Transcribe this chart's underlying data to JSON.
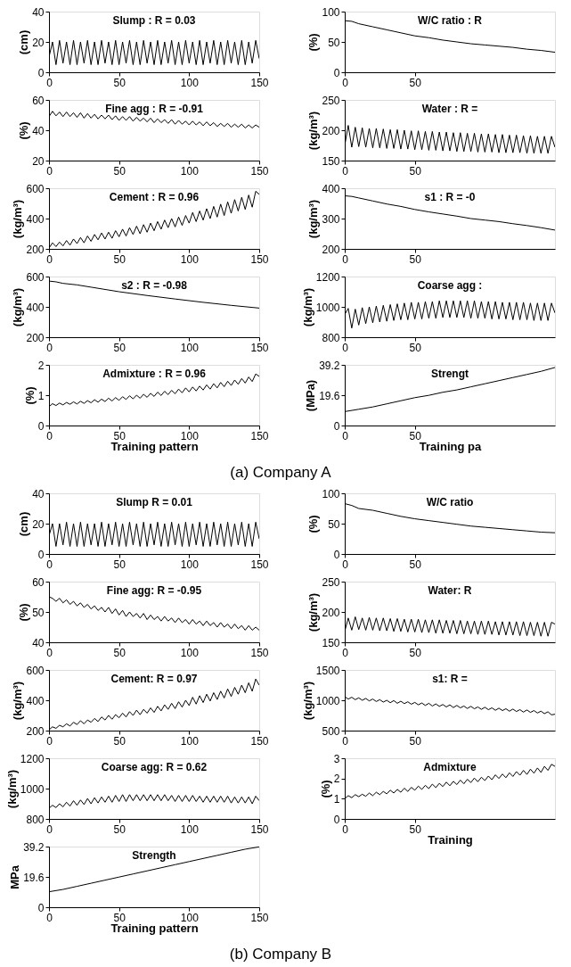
{
  "chart_data": [
    {
      "type": "line",
      "title": "Slump : R = 0.03",
      "ylabel": "(cm)",
      "color": "#000000",
      "xlim": [
        0,
        150
      ],
      "xticks": [
        0,
        50,
        100,
        150
      ],
      "ylim": [
        0,
        40
      ],
      "yticks": [
        0,
        20,
        40
      ],
      "x": [
        0,
        2.5,
        5,
        7.5,
        10,
        12.5,
        15,
        17.5,
        20,
        22.5,
        25,
        27.5,
        30,
        32.5,
        35,
        37.5,
        40,
        42.5,
        45,
        47.5,
        50,
        52.5,
        55,
        57.5,
        60,
        62.5,
        65,
        67.5,
        70,
        72.5,
        75,
        77.5,
        80,
        82.5,
        85,
        87.5,
        90,
        92.5,
        95,
        97.5,
        100,
        102.5,
        105,
        107.5,
        110,
        112.5,
        115,
        117.5,
        120,
        122.5,
        125,
        127.5,
        130,
        132.5,
        135,
        137.5,
        140,
        142.5,
        145,
        147.5,
        150
      ],
      "values": [
        10,
        20,
        5,
        21,
        6,
        20,
        5,
        21,
        5,
        20,
        6,
        21,
        5,
        20,
        5,
        21,
        6,
        20,
        5,
        21,
        5,
        20,
        6,
        21,
        5,
        20,
        5,
        21,
        6,
        20,
        5,
        21,
        5,
        20,
        6,
        21,
        5,
        20,
        5,
        21,
        6,
        20,
        5,
        21,
        5,
        20,
        6,
        21,
        5,
        20,
        5,
        21,
        6,
        20,
        5,
        21,
        5,
        20,
        6,
        21,
        9
      ]
    },
    {
      "type": "line",
      "title": "Fine agg : R = -0.91",
      "ylabel": "(%)",
      "color": "#000000",
      "xlim": [
        0,
        150
      ],
      "xticks": [
        0,
        50,
        100,
        150
      ],
      "ylim": [
        20,
        60
      ],
      "yticks": [
        20,
        40,
        60
      ],
      "x": [
        0,
        2.5,
        5,
        7.5,
        10,
        12.5,
        15,
        17.5,
        20,
        22.5,
        25,
        27.5,
        30,
        32.5,
        35,
        37.5,
        40,
        42.5,
        45,
        47.5,
        50,
        52.5,
        55,
        57.5,
        60,
        62.5,
        65,
        67.5,
        70,
        72.5,
        75,
        77.5,
        80,
        82.5,
        85,
        87.5,
        90,
        92.5,
        95,
        97.5,
        100,
        102.5,
        105,
        107.5,
        110,
        112.5,
        115,
        117.5,
        120,
        122.5,
        125,
        127.5,
        130,
        132.5,
        135,
        137.5,
        140,
        142.5,
        145,
        147.5,
        150
      ],
      "values": [
        49,
        52.5,
        49.5,
        52,
        49,
        52,
        49,
        51.5,
        48.5,
        51.5,
        48,
        51,
        48,
        50.5,
        47.5,
        50,
        47.5,
        50,
        47,
        49.5,
        46.5,
        49,
        46.5,
        49,
        46,
        48.5,
        46,
        48,
        45.5,
        48,
        45,
        47.5,
        45,
        47,
        44.5,
        47,
        44,
        46.5,
        44,
        46,
        43.5,
        46,
        43.5,
        45.5,
        43,
        45.5,
        43,
        45,
        42.5,
        44.5,
        42.5,
        44.5,
        42,
        44,
        42,
        44,
        41.5,
        43.5,
        41.5,
        43.5,
        42
      ]
    },
    {
      "type": "line",
      "title": "Cement : R = 0.96",
      "ylabel": "(kg/m³)",
      "color": "#000000",
      "xlim": [
        0,
        150
      ],
      "xticks": [
        0,
        50,
        100,
        150
      ],
      "ylim": [
        200,
        600
      ],
      "yticks": [
        200,
        400,
        600
      ],
      "x": [
        0,
        2.5,
        5,
        7.5,
        10,
        12.5,
        15,
        17.5,
        20,
        22.5,
        25,
        27.5,
        30,
        32.5,
        35,
        37.5,
        40,
        42.5,
        45,
        47.5,
        50,
        52.5,
        55,
        57.5,
        60,
        62.5,
        65,
        67.5,
        70,
        72.5,
        75,
        77.5,
        80,
        82.5,
        85,
        87.5,
        90,
        92.5,
        95,
        97.5,
        100,
        102.5,
        105,
        107.5,
        110,
        112.5,
        115,
        117.5,
        120,
        122.5,
        125,
        127.5,
        130,
        132.5,
        135,
        137.5,
        140,
        142.5,
        145,
        147.5,
        150
      ],
      "values": [
        205,
        240,
        215,
        245,
        220,
        255,
        225,
        265,
        235,
        275,
        240,
        285,
        250,
        295,
        260,
        305,
        265,
        310,
        270,
        320,
        280,
        330,
        285,
        340,
        295,
        350,
        300,
        360,
        310,
        370,
        320,
        380,
        330,
        390,
        340,
        400,
        345,
        410,
        355,
        420,
        370,
        440,
        380,
        450,
        390,
        465,
        400,
        480,
        410,
        495,
        420,
        510,
        435,
        525,
        450,
        540,
        460,
        555,
        475,
        580,
        560
      ]
    },
    {
      "type": "line",
      "title": "s2 : R = -0.98",
      "ylabel": "(kg/m³)",
      "color": "#000000",
      "xlim": [
        0,
        150
      ],
      "xticks": [
        0,
        50,
        100,
        150
      ],
      "ylim": [
        200,
        600
      ],
      "yticks": [
        200,
        400,
        600
      ],
      "x": [
        0,
        5,
        10,
        20,
        30,
        50,
        70,
        90,
        110,
        130,
        150
      ],
      "values": [
        570,
        565,
        555,
        545,
        530,
        500,
        475,
        452,
        430,
        410,
        392
      ]
    },
    {
      "type": "line",
      "title": "Admixture : R = 0.96",
      "ylabel": "(%)",
      "xlabel": "Training pattern",
      "color": "#000000",
      "xlim": [
        0,
        150
      ],
      "xticks": [
        0,
        50,
        100,
        150
      ],
      "ylim": [
        0,
        2
      ],
      "yticks": [
        0,
        1,
        2
      ],
      "x": [
        0,
        2.5,
        5,
        7.5,
        10,
        12.5,
        15,
        17.5,
        20,
        22.5,
        25,
        27.5,
        30,
        32.5,
        35,
        37.5,
        40,
        42.5,
        45,
        47.5,
        50,
        52.5,
        55,
        57.5,
        60,
        62.5,
        65,
        67.5,
        70,
        72.5,
        75,
        77.5,
        80,
        82.5,
        85,
        87.5,
        90,
        92.5,
        95,
        97.5,
        100,
        102.5,
        105,
        107.5,
        110,
        112.5,
        115,
        117.5,
        120,
        122.5,
        125,
        127.5,
        130,
        132.5,
        135,
        137.5,
        140,
        142.5,
        145,
        147.5,
        150
      ],
      "values": [
        0.62,
        0.72,
        0.66,
        0.74,
        0.68,
        0.76,
        0.7,
        0.78,
        0.71,
        0.8,
        0.73,
        0.82,
        0.75,
        0.85,
        0.77,
        0.87,
        0.79,
        0.9,
        0.81,
        0.92,
        0.83,
        0.95,
        0.86,
        0.98,
        0.88,
        1.0,
        0.9,
        1.03,
        0.93,
        1.06,
        0.96,
        1.1,
        0.99,
        1.13,
        1.02,
        1.16,
        1.05,
        1.2,
        1.08,
        1.24,
        1.11,
        1.27,
        1.14,
        1.3,
        1.17,
        1.34,
        1.2,
        1.38,
        1.24,
        1.42,
        1.28,
        1.46,
        1.32,
        1.5,
        1.36,
        1.55,
        1.4,
        1.6,
        1.45,
        1.7,
        1.62
      ]
    },
    {
      "type": "line",
      "title": "W/C ratio : R",
      "ylabel": "(%)",
      "color": "#000000",
      "xlim": [
        0,
        150
      ],
      "xticks": [
        0,
        50
      ],
      "ylim": [
        0,
        100
      ],
      "yticks": [
        0,
        50,
        100
      ],
      "x": [
        0,
        5,
        10,
        20,
        30,
        40,
        50,
        60,
        70,
        80,
        90,
        100,
        110,
        120,
        130,
        140,
        150
      ],
      "values": [
        85,
        84,
        80,
        75,
        70,
        65,
        60,
        57,
        53,
        50,
        47,
        45,
        43,
        41,
        38,
        36,
        33
      ]
    },
    {
      "type": "line",
      "title": "Water : R =",
      "ylabel": "(kg/m³)",
      "color": "#000000",
      "xlim": [
        0,
        150
      ],
      "xticks": [
        0,
        50
      ],
      "ylim": [
        150,
        250
      ],
      "yticks": [
        150,
        200,
        250
      ],
      "x": [
        0,
        2.5,
        5,
        7.5,
        10,
        12.5,
        15,
        17.5,
        20,
        22.5,
        25,
        27.5,
        30,
        32.5,
        35,
        37.5,
        40,
        42.5,
        45,
        47.5,
        50,
        52.5,
        55,
        57.5,
        60,
        62.5,
        65,
        67.5,
        70,
        72.5,
        75,
        77.5,
        80,
        82.5,
        85,
        87.5,
        90,
        92.5,
        95,
        97.5,
        100,
        102.5,
        105,
        107.5,
        110,
        112.5,
        115,
        117.5,
        120,
        122.5,
        125,
        127.5,
        130,
        132.5,
        135,
        137.5,
        140,
        142.5,
        145,
        147.5,
        150
      ],
      "values": [
        175,
        208,
        172,
        205,
        173,
        204,
        172,
        203,
        171,
        203,
        171,
        202,
        170,
        201,
        170,
        201,
        169,
        200,
        169,
        199,
        168,
        199,
        168,
        198,
        167,
        198,
        167,
        197,
        166,
        197,
        166,
        196,
        165,
        196,
        165,
        195,
        165,
        195,
        164,
        194,
        164,
        194,
        164,
        193,
        163,
        193,
        163,
        192,
        163,
        192,
        163,
        191,
        162,
        191,
        162,
        190,
        162,
        190,
        162,
        190,
        172
      ]
    },
    {
      "type": "line",
      "title": "s1 : R = -0",
      "ylabel": "(kg/m³)",
      "color": "#000000",
      "xlim": [
        0,
        150
      ],
      "xticks": [
        0,
        50
      ],
      "ylim": [
        200,
        400
      ],
      "yticks": [
        200,
        300,
        400
      ],
      "x": [
        0,
        5,
        10,
        20,
        30,
        40,
        50,
        60,
        70,
        80,
        90,
        100,
        110,
        120,
        130,
        140,
        150
      ],
      "values": [
        375,
        373,
        368,
        358,
        348,
        340,
        330,
        322,
        315,
        308,
        300,
        295,
        290,
        283,
        277,
        270,
        262
      ]
    },
    {
      "type": "line",
      "title": "Coarse agg :",
      "ylabel": "(kg/m³)",
      "color": "#000000",
      "xlim": [
        0,
        150
      ],
      "xticks": [
        0,
        50
      ],
      "ylim": [
        800,
        1200
      ],
      "yticks": [
        800,
        1000,
        1200
      ],
      "x": [
        0,
        2.5,
        5,
        7.5,
        10,
        12.5,
        15,
        17.5,
        20,
        22.5,
        25,
        27.5,
        30,
        32.5,
        35,
        37.5,
        40,
        42.5,
        45,
        47.5,
        50,
        52.5,
        55,
        57.5,
        60,
        62.5,
        65,
        67.5,
        70,
        72.5,
        75,
        77.5,
        80,
        82.5,
        85,
        87.5,
        90,
        92.5,
        95,
        97.5,
        100,
        102.5,
        105,
        107.5,
        110,
        112.5,
        115,
        117.5,
        120,
        122.5,
        125,
        127.5,
        130,
        132.5,
        135,
        137.5,
        140,
        142.5,
        145,
        147.5,
        150
      ],
      "values": [
        950,
        990,
        860,
        985,
        880,
        995,
        890,
        1000,
        895,
        1005,
        900,
        1010,
        905,
        1015,
        910,
        1020,
        915,
        1025,
        915,
        1030,
        920,
        1030,
        920,
        1035,
        925,
        1035,
        925,
        1040,
        930,
        1040,
        930,
        1040,
        930,
        1040,
        930,
        1040,
        925,
        1040,
        925,
        1035,
        925,
        1035,
        920,
        1035,
        920,
        1030,
        920,
        1030,
        915,
        1030,
        915,
        1030,
        915,
        1025,
        910,
        1025,
        910,
        1025,
        910,
        1025,
        960
      ]
    },
    {
      "type": "line",
      "title": "Strengt",
      "ylabel": "(MPa)",
      "xlabel": "Training pa",
      "color": "#000000",
      "xlim": [
        0,
        150
      ],
      "xticks": [
        0,
        50
      ],
      "ylim": [
        0,
        39.2
      ],
      "yticks": [
        0,
        19.6,
        39.2
      ],
      "x": [
        0,
        10,
        20,
        30,
        40,
        50,
        60,
        70,
        80,
        90,
        100,
        110,
        120,
        130,
        140,
        150
      ],
      "values": [
        9,
        10.5,
        12,
        14,
        16,
        18,
        19.5,
        21.5,
        23,
        25,
        27,
        29,
        31,
        33,
        35,
        37.5
      ]
    },
    {
      "type": "other",
      "annotations": [
        "(a) Company A"
      ]
    },
    {
      "type": "line",
      "title": "Slump R = 0.01",
      "ylabel": "(cm)",
      "color": "#000000",
      "xlim": [
        0,
        150
      ],
      "xticks": [
        0,
        50,
        100,
        150
      ],
      "ylim": [
        0,
        40
      ],
      "yticks": [
        0,
        20,
        40
      ],
      "x": [
        0,
        2.5,
        5,
        7.5,
        10,
        12.5,
        15,
        17.5,
        20,
        22.5,
        25,
        27.5,
        30,
        32.5,
        35,
        37.5,
        40,
        42.5,
        45,
        47.5,
        50,
        52.5,
        55,
        57.5,
        60,
        62.5,
        65,
        67.5,
        70,
        72.5,
        75,
        77.5,
        80,
        82.5,
        85,
        87.5,
        90,
        92.5,
        95,
        97.5,
        100,
        102.5,
        105,
        107.5,
        110,
        112.5,
        115,
        117.5,
        120,
        122.5,
        125,
        127.5,
        130,
        132.5,
        135,
        137.5,
        140,
        142.5,
        145,
        147.5,
        150
      ],
      "values": [
        12,
        20,
        5,
        20,
        6,
        21,
        5,
        20,
        5,
        21,
        5,
        20,
        6,
        20,
        5,
        21,
        5,
        20,
        6,
        21,
        5,
        20,
        5,
        21,
        6,
        20,
        5,
        21,
        5,
        20,
        6,
        21,
        5,
        20,
        5,
        21,
        6,
        20,
        5,
        21,
        5,
        20,
        6,
        21,
        5,
        20,
        5,
        21,
        6,
        20,
        5,
        21,
        5,
        20,
        6,
        21,
        5,
        20,
        5,
        21,
        10
      ]
    },
    {
      "type": "line",
      "title": "Fine agg: R = -0.95",
      "ylabel": "(%)",
      "color": "#000000",
      "xlim": [
        0,
        150
      ],
      "xticks": [
        0,
        50,
        100,
        150
      ],
      "ylim": [
        40,
        60
      ],
      "yticks": [
        40,
        50,
        60
      ],
      "x": [
        0,
        2.5,
        5,
        7.5,
        10,
        12.5,
        15,
        17.5,
        20,
        22.5,
        25,
        27.5,
        30,
        32.5,
        35,
        37.5,
        40,
        42.5,
        45,
        47.5,
        50,
        52.5,
        55,
        57.5,
        60,
        62.5,
        65,
        67.5,
        70,
        72.5,
        75,
        77.5,
        80,
        82.5,
        85,
        87.5,
        90,
        92.5,
        95,
        97.5,
        100,
        102.5,
        105,
        107.5,
        110,
        112.5,
        115,
        117.5,
        120,
        122.5,
        125,
        127.5,
        130,
        132.5,
        135,
        137.5,
        140,
        142.5,
        145,
        147.5,
        150
      ],
      "values": [
        55,
        54.5,
        53.5,
        54.5,
        53,
        54,
        52.5,
        53.5,
        52,
        53,
        51.5,
        52.5,
        51,
        52,
        50.5,
        51.5,
        50,
        51.5,
        49.5,
        51,
        49,
        50.5,
        48.5,
        50,
        48.5,
        49.5,
        48,
        49.5,
        47.5,
        49,
        47.5,
        48.5,
        47,
        48.5,
        47,
        48,
        46.5,
        48,
        46.5,
        47.5,
        46,
        47.5,
        46,
        47,
        45.5,
        47,
        45.5,
        46.5,
        45,
        46.5,
        45,
        46,
        44.5,
        46,
        44.5,
        45.5,
        44,
        45.5,
        44,
        45,
        44
      ]
    },
    {
      "type": "line",
      "title": "Cement: R = 0.97",
      "ylabel": "(kg/m³)",
      "color": "#000000",
      "xlim": [
        0,
        150
      ],
      "xticks": [
        0,
        50,
        100,
        150
      ],
      "ylim": [
        200,
        600
      ],
      "yticks": [
        200,
        400,
        600
      ],
      "x": [
        0,
        2.5,
        5,
        7.5,
        10,
        12.5,
        15,
        17.5,
        20,
        22.5,
        25,
        27.5,
        30,
        32.5,
        35,
        37.5,
        40,
        42.5,
        45,
        47.5,
        50,
        52.5,
        55,
        57.5,
        60,
        62.5,
        65,
        67.5,
        70,
        72.5,
        75,
        77.5,
        80,
        82.5,
        85,
        87.5,
        90,
        92.5,
        95,
        97.5,
        100,
        102.5,
        105,
        107.5,
        110,
        112.5,
        115,
        117.5,
        120,
        122.5,
        125,
        127.5,
        130,
        132.5,
        135,
        137.5,
        140,
        142.5,
        145,
        147.5,
        150
      ],
      "values": [
        205,
        225,
        215,
        235,
        225,
        245,
        230,
        255,
        240,
        265,
        245,
        270,
        255,
        280,
        260,
        290,
        270,
        300,
        275,
        305,
        285,
        315,
        290,
        325,
        300,
        335,
        305,
        340,
        315,
        350,
        320,
        360,
        330,
        370,
        340,
        380,
        345,
        390,
        355,
        400,
        365,
        420,
        375,
        430,
        385,
        440,
        395,
        450,
        405,
        460,
        415,
        475,
        425,
        485,
        440,
        500,
        450,
        515,
        460,
        540,
        500
      ]
    },
    {
      "type": "line",
      "title": "Coarse agg: R = 0.62",
      "ylabel": "(kg/m³)",
      "color": "#000000",
      "xlim": [
        0,
        150
      ],
      "xticks": [
        0,
        50,
        100,
        150
      ],
      "ylim": [
        800,
        1200
      ],
      "yticks": [
        800,
        1000,
        1200
      ],
      "x": [
        0,
        2.5,
        5,
        7.5,
        10,
        12.5,
        15,
        17.5,
        20,
        22.5,
        25,
        27.5,
        30,
        32.5,
        35,
        37.5,
        40,
        42.5,
        45,
        47.5,
        50,
        52.5,
        55,
        57.5,
        60,
        62.5,
        65,
        67.5,
        70,
        72.5,
        75,
        77.5,
        80,
        82.5,
        85,
        87.5,
        90,
        92.5,
        95,
        97.5,
        100,
        102.5,
        105,
        107.5,
        110,
        112.5,
        115,
        117.5,
        120,
        122.5,
        125,
        127.5,
        130,
        132.5,
        135,
        137.5,
        140,
        142.5,
        145,
        147.5,
        150
      ],
      "values": [
        870,
        890,
        875,
        900,
        880,
        910,
        885,
        920,
        890,
        925,
        895,
        935,
        900,
        940,
        905,
        945,
        910,
        950,
        910,
        955,
        915,
        960,
        915,
        960,
        920,
        960,
        920,
        960,
        920,
        960,
        920,
        960,
        920,
        960,
        920,
        955,
        915,
        955,
        915,
        955,
        915,
        955,
        915,
        950,
        910,
        950,
        910,
        950,
        910,
        950,
        910,
        950,
        905,
        945,
        905,
        945,
        905,
        945,
        900,
        950,
        920
      ]
    },
    {
      "type": "line",
      "title": "Strength",
      "ylabel": "MPa",
      "xlabel": "Training pattern",
      "color": "#000000",
      "xlim": [
        0,
        150
      ],
      "xticks": [
        0,
        50,
        100,
        150
      ],
      "ylim": [
        0,
        39.2
      ],
      "yticks": [
        0,
        19.6,
        39.2
      ],
      "x": [
        0,
        10,
        20,
        30,
        40,
        50,
        60,
        70,
        80,
        90,
        100,
        110,
        120,
        130,
        140,
        150
      ],
      "values": [
        10,
        11.5,
        13.5,
        15.5,
        17.5,
        19.5,
        21.5,
        23.5,
        25.5,
        27.5,
        29.5,
        31.5,
        33.5,
        35.5,
        37.5,
        39
      ]
    },
    {
      "type": "line",
      "title": "W/C ratio",
      "ylabel": "(%)",
      "color": "#000000",
      "xlim": [
        0,
        150
      ],
      "xticks": [
        0,
        50
      ],
      "ylim": [
        0,
        100
      ],
      "yticks": [
        0,
        50,
        100
      ],
      "x": [
        0,
        5,
        10,
        20,
        30,
        40,
        50,
        60,
        70,
        80,
        90,
        100,
        110,
        120,
        130,
        140,
        150
      ],
      "values": [
        83,
        80,
        75,
        72,
        67,
        62,
        58,
        55,
        52,
        49,
        46,
        44,
        42,
        40,
        38,
        36,
        35
      ]
    },
    {
      "type": "line",
      "title": "Water: R",
      "ylabel": "(kg/m³)",
      "color": "#000000",
      "xlim": [
        0,
        150
      ],
      "xticks": [
        0,
        50
      ],
      "ylim": [
        150,
        250
      ],
      "yticks": [
        150,
        200,
        250
      ],
      "x": [
        0,
        2.5,
        5,
        7.5,
        10,
        12.5,
        15,
        17.5,
        20,
        22.5,
        25,
        27.5,
        30,
        32.5,
        35,
        37.5,
        40,
        42.5,
        45,
        47.5,
        50,
        52.5,
        55,
        57.5,
        60,
        62.5,
        65,
        67.5,
        70,
        72.5,
        75,
        77.5,
        80,
        82.5,
        85,
        87.5,
        90,
        92.5,
        95,
        97.5,
        100,
        102.5,
        105,
        107.5,
        110,
        112.5,
        115,
        117.5,
        120,
        122.5,
        125,
        127.5,
        130,
        132.5,
        135,
        137.5,
        140,
        142.5,
        145,
        147.5,
        150
      ],
      "values": [
        168,
        190,
        170,
        192,
        171,
        190,
        170,
        191,
        170,
        190,
        169,
        190,
        169,
        189,
        168,
        189,
        168,
        188,
        167,
        188,
        167,
        188,
        166,
        187,
        166,
        187,
        165,
        187,
        165,
        186,
        165,
        186,
        164,
        186,
        164,
        185,
        164,
        185,
        163,
        185,
        163,
        185,
        163,
        184,
        162,
        184,
        162,
        184,
        162,
        184,
        161,
        184,
        161,
        183,
        161,
        183,
        160,
        183,
        160,
        183,
        180
      ]
    },
    {
      "type": "line",
      "title": "s1: R =",
      "ylabel": "(kg/m³)",
      "color": "#000000",
      "xlim": [
        0,
        150
      ],
      "xticks": [
        0,
        50
      ],
      "ylim": [
        500,
        1500
      ],
      "yticks": [
        500,
        1000,
        1500
      ],
      "x": [
        0,
        2.5,
        5,
        7.5,
        10,
        12.5,
        15,
        17.5,
        20,
        22.5,
        25,
        27.5,
        30,
        32.5,
        35,
        37.5,
        40,
        42.5,
        45,
        47.5,
        50,
        52.5,
        55,
        57.5,
        60,
        62.5,
        65,
        67.5,
        70,
        72.5,
        75,
        77.5,
        80,
        82.5,
        85,
        87.5,
        90,
        92.5,
        95,
        97.5,
        100,
        102.5,
        105,
        107.5,
        110,
        112.5,
        115,
        117.5,
        120,
        122.5,
        125,
        127.5,
        130,
        132.5,
        135,
        137.5,
        140,
        142.5,
        145,
        147.5,
        150
      ],
      "values": [
        1060,
        1020,
        1050,
        1010,
        1040,
        1000,
        1030,
        990,
        1020,
        980,
        1010,
        970,
        1000,
        960,
        995,
        950,
        985,
        945,
        975,
        935,
        965,
        925,
        955,
        915,
        950,
        905,
        940,
        900,
        930,
        890,
        925,
        880,
        915,
        875,
        905,
        865,
        900,
        860,
        890,
        850,
        885,
        845,
        875,
        835,
        870,
        830,
        860,
        820,
        855,
        815,
        845,
        805,
        840,
        800,
        830,
        790,
        820,
        780,
        810,
        760,
        770
      ]
    },
    {
      "type": "line",
      "title": "Admixture",
      "ylabel": "(%)",
      "xlabel": "Training",
      "color": "#000000",
      "xlim": [
        0,
        150
      ],
      "xticks": [
        0,
        50
      ],
      "ylim": [
        0,
        3
      ],
      "yticks": [
        0,
        1,
        2,
        3
      ],
      "x": [
        0,
        2.5,
        5,
        7.5,
        10,
        12.5,
        15,
        17.5,
        20,
        22.5,
        25,
        27.5,
        30,
        32.5,
        35,
        37.5,
        40,
        42.5,
        45,
        47.5,
        50,
        52.5,
        55,
        57.5,
        60,
        62.5,
        65,
        67.5,
        70,
        72.5,
        75,
        77.5,
        80,
        82.5,
        85,
        87.5,
        90,
        92.5,
        95,
        97.5,
        100,
        102.5,
        105,
        107.5,
        110,
        112.5,
        115,
        117.5,
        120,
        122.5,
        125,
        127.5,
        130,
        132.5,
        135,
        137.5,
        140,
        142.5,
        145,
        147.5,
        150
      ],
      "values": [
        1.0,
        1.15,
        1.05,
        1.2,
        1.1,
        1.22,
        1.12,
        1.28,
        1.15,
        1.32,
        1.2,
        1.36,
        1.24,
        1.42,
        1.28,
        1.46,
        1.32,
        1.52,
        1.36,
        1.56,
        1.42,
        1.62,
        1.46,
        1.66,
        1.5,
        1.72,
        1.55,
        1.76,
        1.6,
        1.82,
        1.64,
        1.86,
        1.7,
        1.92,
        1.74,
        1.96,
        1.8,
        2.02,
        1.84,
        2.06,
        1.9,
        2.12,
        1.94,
        2.18,
        2.0,
        2.22,
        2.04,
        2.28,
        2.1,
        2.34,
        2.16,
        2.4,
        2.2,
        2.46,
        2.26,
        2.52,
        2.3,
        2.6,
        2.4,
        2.7,
        2.6
      ]
    },
    {
      "type": "other",
      "annotations": [
        "(b) Company B"
      ]
    }
  ]
}
